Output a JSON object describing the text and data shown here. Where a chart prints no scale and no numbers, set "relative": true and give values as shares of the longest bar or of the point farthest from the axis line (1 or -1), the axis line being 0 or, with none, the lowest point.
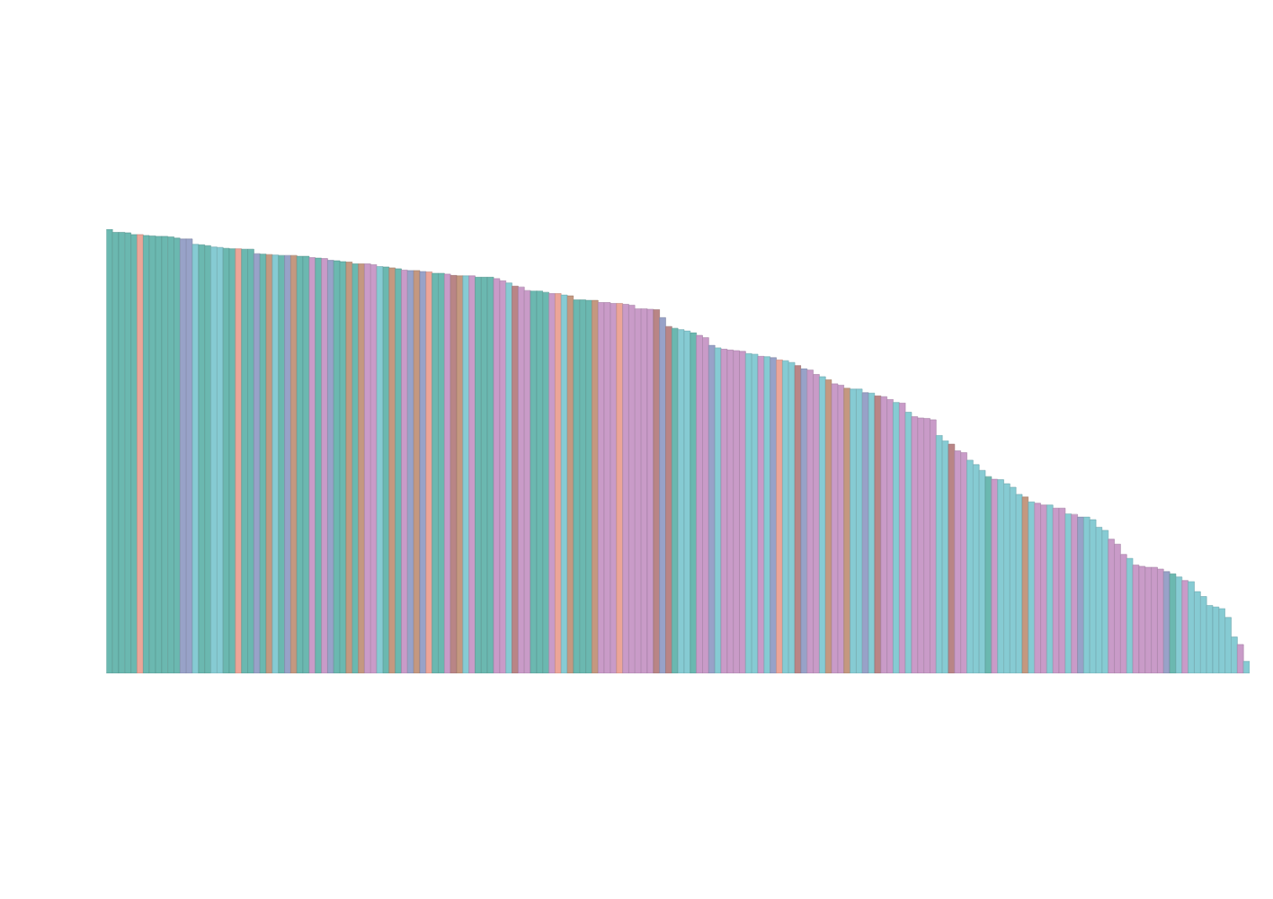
{
  "chart_data": {
    "type": "bar",
    "relative": true,
    "categories": [
      null,
      null,
      null,
      null,
      null,
      null,
      null,
      null,
      null,
      null,
      null,
      null,
      null,
      null,
      null,
      null,
      null,
      null,
      null,
      null,
      null,
      null,
      null,
      null,
      null,
      null,
      null,
      null,
      null,
      null,
      null,
      null,
      null,
      null,
      null,
      null,
      null,
      null,
      null,
      null,
      null,
      null,
      null,
      null,
      null,
      null,
      null,
      null,
      null,
      null,
      null,
      null,
      null,
      null,
      null,
      null,
      null,
      null,
      null,
      null,
      null,
      null,
      null,
      null,
      null,
      null,
      null,
      null,
      null,
      null,
      null,
      null,
      null,
      null,
      null,
      null,
      null,
      null,
      null,
      null,
      null,
      null,
      null,
      null,
      null,
      null,
      null,
      null,
      null,
      null,
      null,
      null,
      null,
      null,
      null,
      null,
      null,
      null,
      null,
      null,
      null,
      null,
      null,
      null,
      null,
      null,
      null,
      null,
      null,
      null,
      null,
      null,
      null,
      null,
      null,
      null,
      null,
      null,
      null,
      null,
      null,
      null,
      null,
      null,
      null,
      null,
      null,
      null,
      null,
      null,
      null,
      null,
      null,
      null,
      null,
      null,
      null,
      null,
      null,
      null,
      null,
      null,
      null,
      null,
      null,
      null,
      null,
      null,
      null,
      null,
      null,
      null,
      null,
      null,
      null,
      null,
      null,
      null,
      null,
      null,
      null,
      null,
      null,
      null,
      null,
      null,
      null,
      null,
      null,
      null,
      null,
      null,
      null,
      null,
      null,
      null,
      null,
      null,
      null,
      null,
      null,
      null,
      null,
      null,
      null,
      null
    ],
    "values": [
      1.0,
      0.993,
      0.993,
      0.992,
      0.988,
      0.988,
      0.986,
      0.985,
      0.984,
      0.984,
      0.983,
      0.98,
      0.978,
      0.978,
      0.966,
      0.965,
      0.963,
      0.96,
      0.959,
      0.957,
      0.956,
      0.956,
      0.955,
      0.955,
      0.945,
      0.944,
      0.943,
      0.942,
      0.941,
      0.941,
      0.941,
      0.939,
      0.939,
      0.936,
      0.935,
      0.934,
      0.93,
      0.929,
      0.927,
      0.926,
      0.922,
      0.922,
      0.922,
      0.92,
      0.916,
      0.915,
      0.913,
      0.911,
      0.908,
      0.907,
      0.907,
      0.905,
      0.904,
      0.901,
      0.901,
      0.899,
      0.896,
      0.895,
      0.895,
      0.895,
      0.892,
      0.892,
      0.892,
      0.889,
      0.884,
      0.879,
      0.872,
      0.87,
      0.862,
      0.861,
      0.861,
      0.858,
      0.855,
      0.855,
      0.852,
      0.85,
      0.841,
      0.841,
      0.84,
      0.84,
      0.835,
      0.835,
      0.833,
      0.833,
      0.831,
      0.829,
      0.821,
      0.821,
      0.82,
      0.819,
      0.801,
      0.781,
      0.777,
      0.774,
      0.771,
      0.767,
      0.761,
      0.756,
      0.739,
      0.733,
      0.73,
      0.728,
      0.727,
      0.725,
      0.72,
      0.719,
      0.714,
      0.713,
      0.711,
      0.706,
      0.704,
      0.7,
      0.693,
      0.686,
      0.683,
      0.673,
      0.668,
      0.661,
      0.652,
      0.649,
      0.642,
      0.64,
      0.64,
      0.632,
      0.631,
      0.625,
      0.623,
      0.617,
      0.61,
      0.609,
      0.588,
      0.578,
      0.575,
      0.574,
      0.571,
      0.536,
      0.524,
      0.516,
      0.501,
      0.497,
      0.48,
      0.47,
      0.457,
      0.443,
      0.437,
      0.436,
      0.427,
      0.419,
      0.403,
      0.397,
      0.386,
      0.383,
      0.379,
      0.379,
      0.372,
      0.372,
      0.359,
      0.358,
      0.352,
      0.352,
      0.346,
      0.329,
      0.322,
      0.302,
      0.291,
      0.268,
      0.259,
      0.244,
      0.241,
      0.239,
      0.239,
      0.235,
      0.229,
      0.224,
      0.217,
      0.209,
      0.207,
      0.184,
      0.173,
      0.153,
      0.15,
      0.146,
      0.126,
      0.082,
      0.065,
      0.027
    ],
    "colors": [
      "#6bb8b0",
      "#6bb8b0",
      "#6bb8b0",
      "#6bb8b0",
      "#6bb8b0",
      "#eca598",
      "#6bb8b0",
      "#6bb8b0",
      "#6bb8b0",
      "#6bb8b0",
      "#6bb8b0",
      "#6bb8b0",
      "#98a2c8",
      "#98a2c8",
      "#86cbd3",
      "#6bb8b0",
      "#6bb8b0",
      "#86cbd3",
      "#86cbd3",
      "#6bb8b0",
      "#6bb8b0",
      "#eca598",
      "#6bb8b0",
      "#6bb8b0",
      "#98a2c8",
      "#6bb8b0",
      "#c49880",
      "#86cbd3",
      "#6bb8b0",
      "#98a2c8",
      "#c49880",
      "#6bb8b0",
      "#6bb8b0",
      "#c99bc8",
      "#6bb8b0",
      "#c99bc8",
      "#98a2c8",
      "#6bb8b0",
      "#6bb8b0",
      "#c49880",
      "#6bb8b0",
      "#c49880",
      "#c99bc8",
      "#c99bc8",
      "#86cbd3",
      "#6bb8b0",
      "#c49880",
      "#6bb8b0",
      "#c99bc8",
      "#98a2c8",
      "#c49880",
      "#98a2c8",
      "#eca598",
      "#6bb8b0",
      "#6bb8b0",
      "#c99bc8",
      "#b98586",
      "#c49880",
      "#86cbd3",
      "#c99bc8",
      "#6bb8b0",
      "#6bb8b0",
      "#6bb8b0",
      "#c99bc8",
      "#c99bc8",
      "#86cbd3",
      "#b98586",
      "#c99bc8",
      "#c99bc8",
      "#6bb8b0",
      "#6bb8b0",
      "#6bb8b0",
      "#c99bc8",
      "#eca598",
      "#86cbd3",
      "#c49880",
      "#6bb8b0",
      "#6bb8b0",
      "#6bb8b0",
      "#c49880",
      "#c99bc8",
      "#c99bc8",
      "#c99bc8",
      "#eca598",
      "#c99bc8",
      "#c99bc8",
      "#c99bc8",
      "#c99bc8",
      "#c99bc8",
      "#b98586",
      "#98a2c8",
      "#b98586",
      "#6bb8b0",
      "#86cbd3",
      "#86cbd3",
      "#6bb8b0",
      "#c99bc8",
      "#c99bc8",
      "#98a2c8",
      "#86cbd3",
      "#c99bc8",
      "#c99bc8",
      "#c99bc8",
      "#c99bc8",
      "#86cbd3",
      "#86cbd3",
      "#c99bc8",
      "#86cbd3",
      "#98a2c8",
      "#eca598",
      "#86cbd3",
      "#86cbd3",
      "#b98586",
      "#98a2c8",
      "#c99bc8",
      "#c99bc8",
      "#86cbd3",
      "#c49880",
      "#c99bc8",
      "#c99bc8",
      "#c49880",
      "#86cbd3",
      "#86cbd3",
      "#98a2c8",
      "#86cbd3",
      "#b98586",
      "#c99bc8",
      "#c99bc8",
      "#86cbd3",
      "#c99bc8",
      "#86cbd3",
      "#c99bc8",
      "#c99bc8",
      "#c99bc8",
      "#c99bc8",
      "#86cbd3",
      "#86cbd3",
      "#b98586",
      "#c99bc8",
      "#c99bc8",
      "#86cbd3",
      "#86cbd3",
      "#86cbd3",
      "#6bb8b0",
      "#c99bc8",
      "#86cbd3",
      "#86cbd3",
      "#86cbd3",
      "#86cbd3",
      "#c49880",
      "#86cbd3",
      "#c99bc8",
      "#c99bc8",
      "#86cbd3",
      "#c99bc8",
      "#c99bc8",
      "#86cbd3",
      "#c99bc8",
      "#98a2c8",
      "#86cbd3",
      "#86cbd3",
      "#86cbd3",
      "#86cbd3",
      "#c99bc8",
      "#c99bc8",
      "#c99bc8",
      "#86cbd3",
      "#c99bc8",
      "#c99bc8",
      "#c99bc8",
      "#c99bc8",
      "#c99bc8",
      "#98a2c8",
      "#6bb8b0",
      "#86cbd3",
      "#c99bc8",
      "#86cbd3",
      "#86cbd3",
      "#86cbd3",
      "#86cbd3",
      "#86cbd3",
      "#86cbd3",
      "#86cbd3",
      "#86cbd3",
      "#c99bc8",
      "#86cbd3"
    ]
  }
}
